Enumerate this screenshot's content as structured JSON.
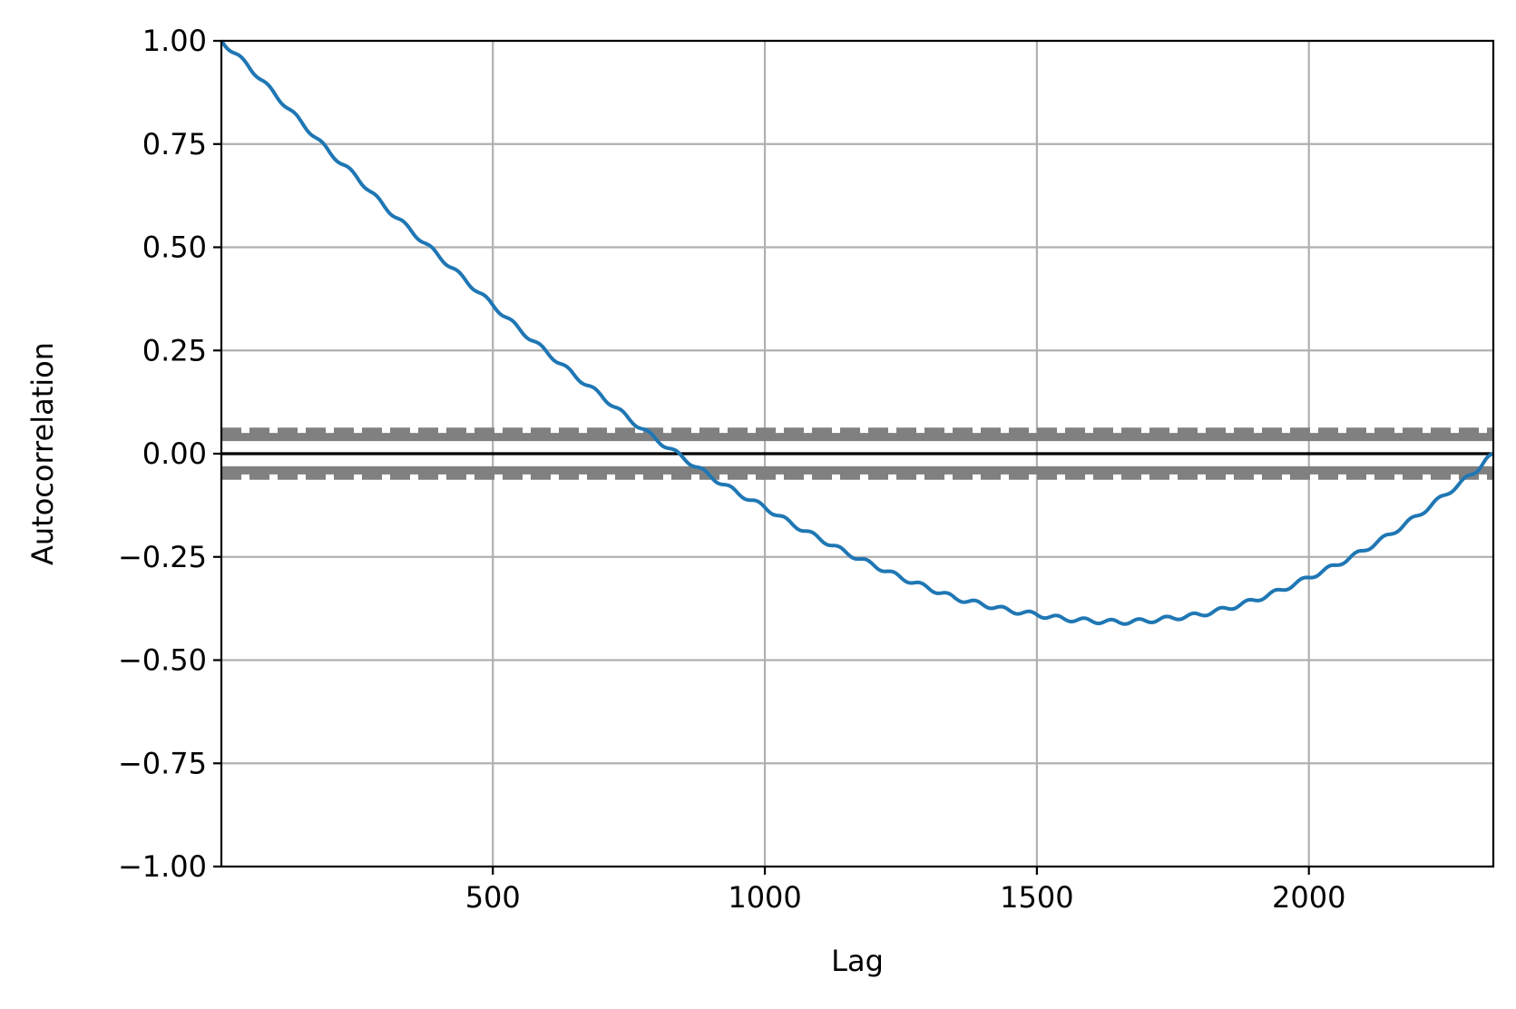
{
  "chart_data": {
    "type": "line",
    "title": "",
    "xlabel": "Lag",
    "ylabel": "Autocorrelation",
    "xlim": [
      1,
      2339
    ],
    "ylim": [
      -1.0,
      1.0
    ],
    "grid": true,
    "x_ticks": [
      {
        "value": 500,
        "label": "500"
      },
      {
        "value": 1000,
        "label": "1000"
      },
      {
        "value": 1500,
        "label": "1500"
      },
      {
        "value": 2000,
        "label": "2000"
      }
    ],
    "y_ticks": [
      {
        "value": 1.0,
        "label": "1.00"
      },
      {
        "value": 0.75,
        "label": "0.75"
      },
      {
        "value": 0.5,
        "label": "0.50"
      },
      {
        "value": 0.25,
        "label": "0.25"
      },
      {
        "value": 0.0,
        "label": "0.00"
      },
      {
        "value": -0.25,
        "label": "−0.25"
      },
      {
        "value": -0.5,
        "label": "−0.50"
      },
      {
        "value": -0.75,
        "label": "−0.75"
      },
      {
        "value": -1.0,
        "label": "−1.00"
      }
    ],
    "series": [
      {
        "color": "#1f77b4",
        "x": [
          1,
          50,
          100,
          150,
          200,
          250,
          300,
          350,
          400,
          450,
          500,
          550,
          600,
          650,
          700,
          750,
          800,
          850,
          900,
          950,
          1000,
          1050,
          1100,
          1150,
          1200,
          1250,
          1300,
          1350,
          1400,
          1450,
          1500,
          1550,
          1600,
          1650,
          1700,
          1750,
          1800,
          1850,
          1900,
          1950,
          2000,
          2050,
          2100,
          2150,
          2200,
          2250,
          2300,
          2339
        ],
        "y": [
          1.0,
          0.94,
          0.87,
          0.8,
          0.73,
          0.67,
          0.6,
          0.54,
          0.48,
          0.42,
          0.36,
          0.3,
          0.245,
          0.19,
          0.14,
          0.085,
          0.035,
          -0.01,
          -0.055,
          -0.095,
          -0.13,
          -0.17,
          -0.205,
          -0.24,
          -0.27,
          -0.3,
          -0.325,
          -0.35,
          -0.365,
          -0.38,
          -0.39,
          -0.4,
          -0.405,
          -0.408,
          -0.405,
          -0.398,
          -0.39,
          -0.375,
          -0.355,
          -0.33,
          -0.3,
          -0.27,
          -0.235,
          -0.195,
          -0.15,
          -0.1,
          -0.05,
          0.0
        ]
      }
    ],
    "reference_lines": {
      "zero": {
        "y": 0.0,
        "color": "#000000",
        "style": "solid"
      },
      "confidence_99": {
        "y": 0.0532,
        "color": "#808080",
        "style": "dashed"
      },
      "confidence_95": {
        "y": 0.0405,
        "color": "#808080",
        "style": "solid"
      }
    },
    "colors": {
      "grid": "#b0b0b0",
      "confidence": "#808080",
      "axis": "#000000",
      "series": "#1f77b4"
    }
  }
}
